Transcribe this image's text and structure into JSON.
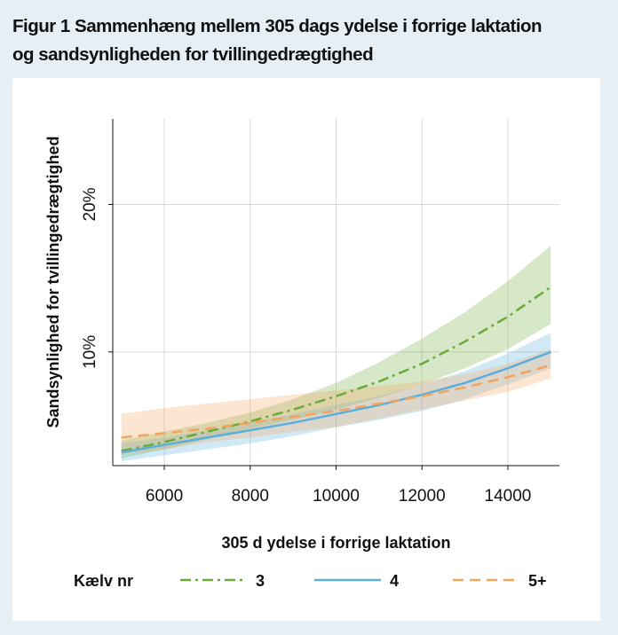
{
  "title_line1": "Figur 1 Sammenhæng mellem 305 dags ydelse i forrige laktation",
  "title_line2": "og sandsynligheden for tvillingedrægtighed",
  "chart_data": {
    "type": "line",
    "xlabel": "305 d ydelse i forrige laktation",
    "ylabel": "Sandsynlighed for tvillingedrægtighed",
    "xlim": [
      4800,
      15200
    ],
    "ylim": [
      2.3,
      25.8
    ],
    "x_ticks": [
      6000,
      8000,
      10000,
      12000,
      14000
    ],
    "x_tick_labels": [
      "6000",
      "8000",
      "10000",
      "12000",
      "14000"
    ],
    "y_ticks": [
      10,
      20
    ],
    "y_tick_labels": [
      "10%",
      "20%"
    ],
    "grid": true,
    "legend_title": "Kælv nr",
    "legend_position": "bottom",
    "x": [
      5000,
      6000,
      7000,
      8000,
      9000,
      10000,
      11000,
      12000,
      13000,
      14000,
      15000
    ],
    "series": [
      {
        "name": "3",
        "color": "#6aab3a",
        "dash": "dashdot",
        "values": [
          3.3,
          3.9,
          4.6,
          5.3,
          6.1,
          7.0,
          8.0,
          9.2,
          10.7,
          12.4,
          14.4
        ],
        "lower": [
          2.8,
          3.4,
          4.1,
          4.8,
          5.4,
          6.1,
          6.9,
          7.8,
          8.9,
          10.2,
          11.9
        ],
        "upper": [
          4.0,
          4.6,
          5.2,
          5.9,
          6.8,
          7.9,
          9.3,
          10.9,
          12.7,
          14.8,
          17.2
        ]
      },
      {
        "name": "4",
        "color": "#5aafdc",
        "dash": "solid",
        "values": [
          3.2,
          3.7,
          4.2,
          4.7,
          5.2,
          5.8,
          6.4,
          7.1,
          7.9,
          8.9,
          10.0
        ],
        "lower": [
          2.6,
          3.0,
          3.4,
          3.8,
          4.3,
          4.9,
          5.4,
          6.0,
          6.8,
          7.8,
          8.9
        ],
        "upper": [
          3.8,
          4.2,
          4.7,
          5.2,
          5.8,
          6.4,
          7.0,
          7.8,
          8.7,
          9.9,
          11.3
        ]
      },
      {
        "name": "5+",
        "color": "#f4a35a",
        "dash": "dashed",
        "values": [
          4.2,
          4.5,
          4.8,
          5.2,
          5.6,
          6.0,
          6.5,
          7.0,
          7.6,
          8.3,
          9.1
        ],
        "lower": [
          3.1,
          3.4,
          3.9,
          4.2,
          4.6,
          4.9,
          5.5,
          6.1,
          6.7,
          7.3,
          8.2
        ],
        "upper": [
          5.8,
          6.2,
          6.5,
          6.8,
          7.1,
          7.4,
          7.7,
          8.0,
          8.5,
          9.2,
          10.2
        ]
      }
    ]
  }
}
